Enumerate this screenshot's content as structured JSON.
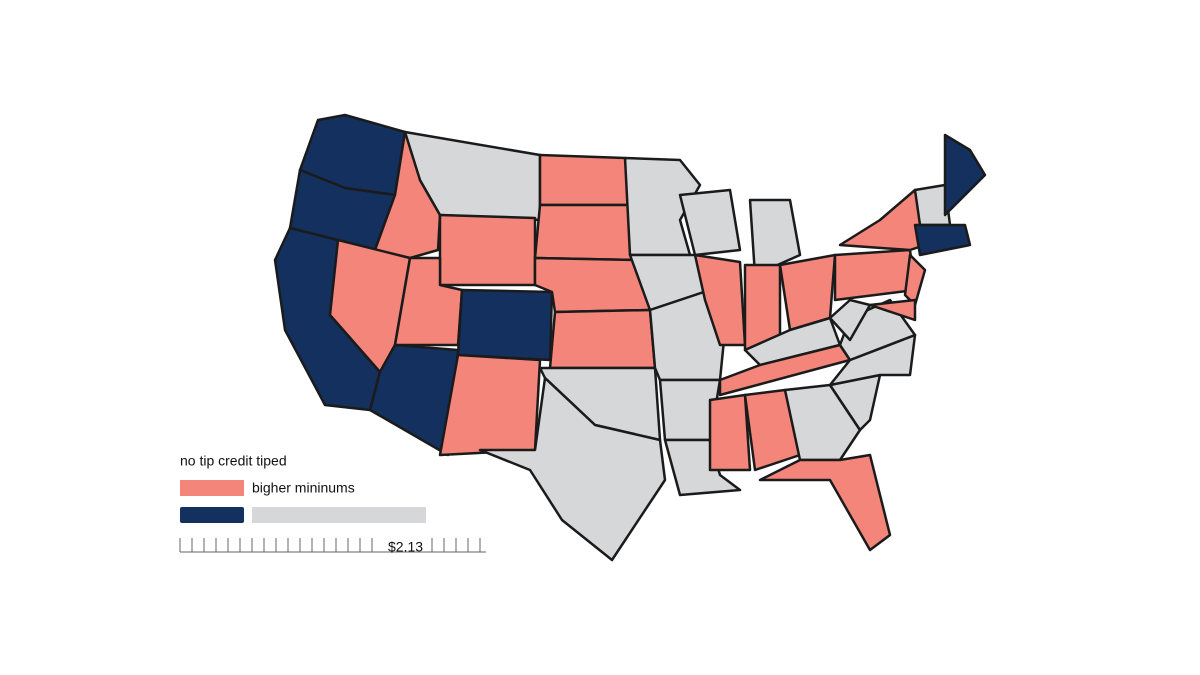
{
  "legend": {
    "title": "no tip credit tiped",
    "items": [
      {
        "label": "bigher mininums",
        "color": "#f4857a"
      },
      {
        "color": "#13305f"
      },
      {
        "color": "#d6d7d9"
      }
    ],
    "scale_label": "$2.13"
  }
}
